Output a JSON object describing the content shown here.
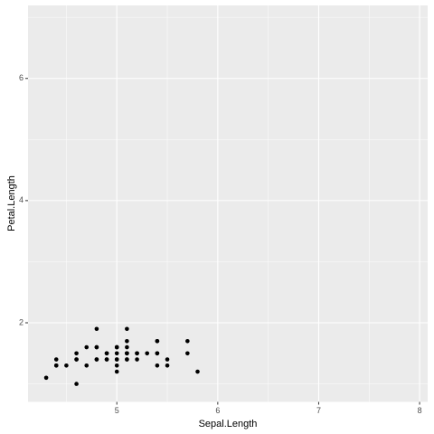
{
  "chart_data": {
    "type": "scatter",
    "x_label": "Sepal.Length",
    "y_label": "Petal.Length",
    "x": [
      5.1,
      4.9,
      4.7,
      4.6,
      5.0,
      5.4,
      4.6,
      5.0,
      4.4,
      4.9,
      5.4,
      4.8,
      4.8,
      4.3,
      5.8,
      5.7,
      5.4,
      5.1,
      5.7,
      5.1,
      5.4,
      5.1,
      4.6,
      5.1,
      4.8,
      5.0,
      5.0,
      5.2,
      5.2,
      4.7,
      4.8,
      5.4,
      5.2,
      5.5,
      4.9,
      5.0,
      5.5,
      4.9,
      4.4,
      5.1,
      5.0,
      4.5,
      4.4,
      5.0,
      5.1,
      4.8,
      5.1,
      4.6,
      5.3,
      5.0
    ],
    "values": [
      1.4,
      1.4,
      1.3,
      1.5,
      1.4,
      1.7,
      1.4,
      1.5,
      1.4,
      1.5,
      1.5,
      1.6,
      1.4,
      1.1,
      1.2,
      1.5,
      1.3,
      1.4,
      1.7,
      1.5,
      1.7,
      1.5,
      1.0,
      1.7,
      1.9,
      1.6,
      1.6,
      1.5,
      1.4,
      1.6,
      1.6,
      1.5,
      1.5,
      1.4,
      1.5,
      1.2,
      1.3,
      1.4,
      1.3,
      1.5,
      1.3,
      1.3,
      1.3,
      1.6,
      1.9,
      1.4,
      1.6,
      1.4,
      1.5,
      1.4
    ],
    "color": "#000000",
    "xlim": [
      4.12,
      8.08
    ],
    "ylim": [
      0.705,
      7.195
    ],
    "xticks": [
      5,
      6,
      7,
      8
    ],
    "yticks": [
      2,
      4,
      6
    ],
    "x_minor_grid": [
      4.5,
      5.5,
      6.5,
      7.5
    ],
    "y_minor_grid": [
      1,
      3,
      5,
      7
    ],
    "grid": true
  }
}
